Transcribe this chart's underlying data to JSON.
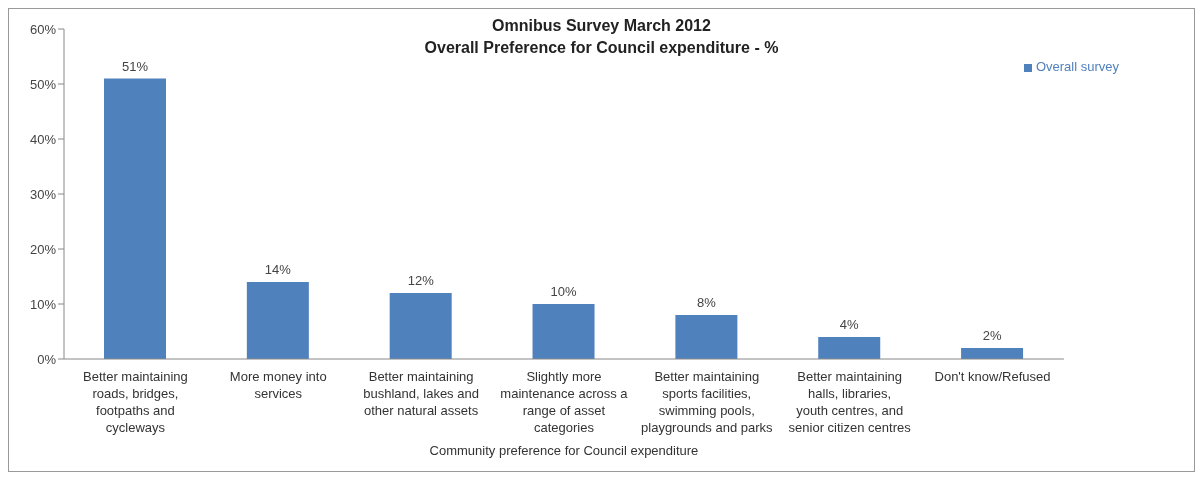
{
  "chart_data": {
    "type": "bar",
    "title": "Omnibus Survey March 2012",
    "subtitle": "Overall Preference for Council expenditure - %",
    "xlabel": "Community preference for Council expenditure",
    "categories": [
      "Better maintaining roads, bridges, footpaths and cycleways",
      "More money into services",
      "Better maintaining bushland, lakes and other natural assets",
      "Slightly more maintenance across a range of asset categories",
      "Better maintaining sports facilities, swimming pools, playgrounds and parks",
      "Better maintaining halls, libraries, youth centres, and senior citizen centres",
      "Don't know/Refused"
    ],
    "series": [
      {
        "name": "Overall survey",
        "color": "#4f81bd",
        "values": [
          51,
          14,
          12,
          10,
          8,
          4,
          2
        ],
        "value_labels": [
          "51%",
          "14%",
          "12%",
          "10%",
          "8%",
          "4%",
          "2%"
        ]
      }
    ],
    "ylim": [
      0,
      60
    ],
    "yticks": [
      {
        "value": 0,
        "label": "0%"
      },
      {
        "value": 10,
        "label": "10%"
      },
      {
        "value": 20,
        "label": "20%"
      },
      {
        "value": 30,
        "label": "30%"
      },
      {
        "value": 40,
        "label": "40%"
      },
      {
        "value": 50,
        "label": "50%"
      },
      {
        "value": 60,
        "label": "60%"
      }
    ],
    "grid": false,
    "legend": "top right"
  }
}
